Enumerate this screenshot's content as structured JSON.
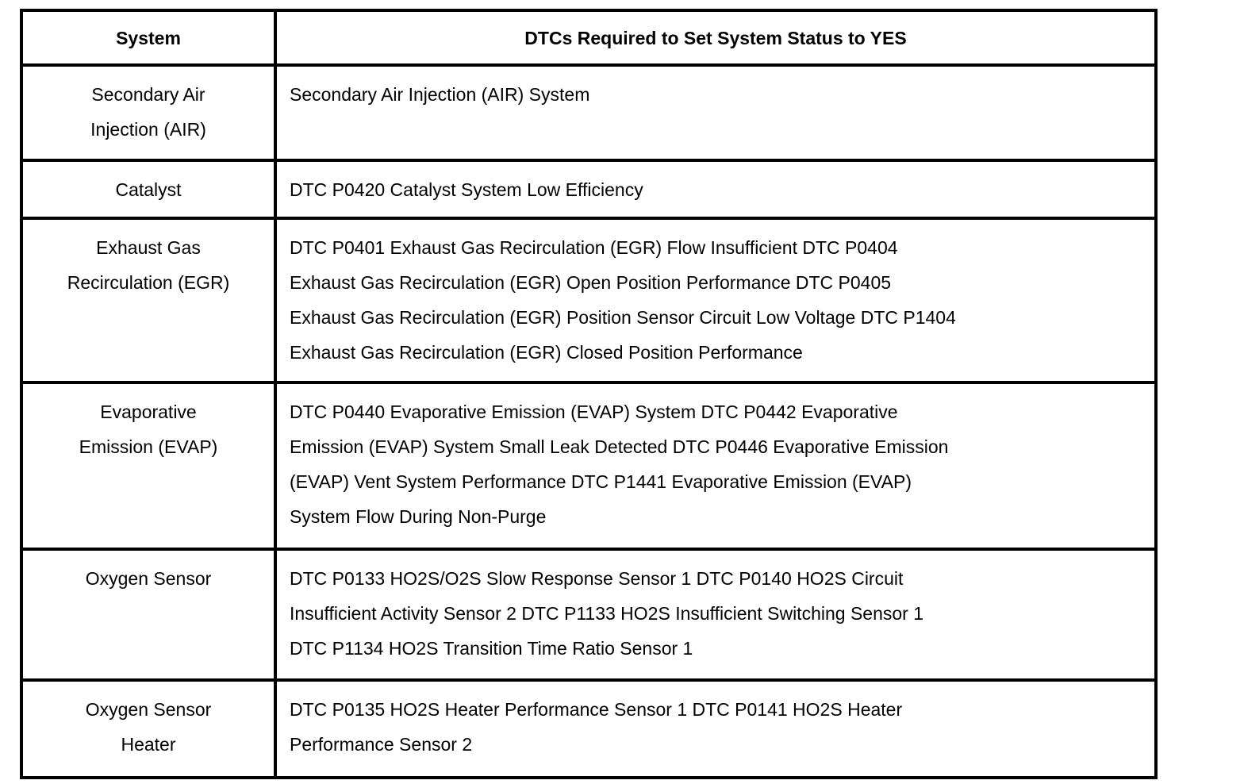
{
  "page": {
    "background_color": "#ffffff",
    "border_color": "#000000",
    "text_color": "#000000"
  },
  "table": {
    "columns": [
      {
        "label": "System"
      },
      {
        "label": "DTCs Required to Set System Status to YES"
      }
    ],
    "rows": [
      {
        "system": "Secondary Air\nInjection (AIR)",
        "dtcs": "Secondary Air Injection (AIR) System"
      },
      {
        "system": "Catalyst",
        "dtcs": "DTC P0420 Catalyst System Low Efficiency"
      },
      {
        "system": "Exhaust Gas\nRecirculation (EGR)",
        "dtcs": "DTC P0401 Exhaust Gas Recirculation (EGR) Flow Insufficient DTC P0404\nExhaust Gas Recirculation (EGR) Open Position Performance DTC P0405\nExhaust Gas Recirculation (EGR) Position Sensor Circuit Low Voltage DTC P1404\nExhaust Gas Recirculation (EGR) Closed Position Performance"
      },
      {
        "system": "Evaporative\nEmission (EVAP)",
        "dtcs": "DTC P0440 Evaporative Emission (EVAP) System DTC P0442 Evaporative\nEmission (EVAP) System Small Leak Detected DTC P0446 Evaporative Emission\n(EVAP) Vent System Performance DTC P1441 Evaporative Emission (EVAP)\nSystem Flow During Non-Purge"
      },
      {
        "system": "Oxygen Sensor",
        "dtcs": "DTC P0133 HO2S/O2S Slow Response Sensor 1 DTC P0140 HO2S Circuit\nInsufficient Activity Sensor 2 DTC P1133 HO2S Insufficient Switching Sensor 1\nDTC P1134 HO2S Transition Time Ratio Sensor 1"
      },
      {
        "system": "Oxygen Sensor\nHeater",
        "dtcs": "DTC P0135 HO2S Heater Performance Sensor 1 DTC P0141 HO2S Heater\nPerformance Sensor 2"
      }
    ]
  }
}
